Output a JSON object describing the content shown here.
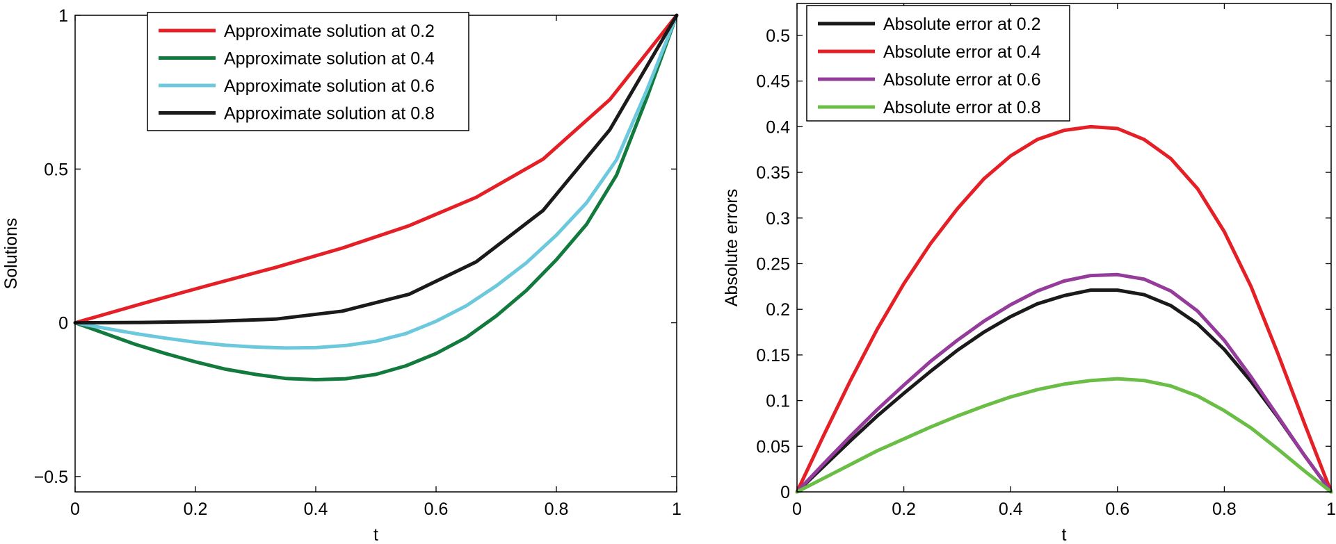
{
  "chart_data": [
    {
      "type": "line",
      "title": "",
      "xlabel": "t",
      "ylabel": "Solutions",
      "xlim": [
        0,
        1
      ],
      "ylim": [
        -0.55,
        1.0
      ],
      "xticks": [
        0,
        0.2,
        0.4,
        0.6,
        0.8,
        1
      ],
      "xtick_labels": [
        "0",
        "0.2",
        "0.4",
        "0.6",
        "0.8",
        "1"
      ],
      "yticks": [
        -0.5,
        0,
        0.5,
        1
      ],
      "ytick_labels": [
        "−0.5",
        "0",
        "0.5",
        "1"
      ],
      "legend_position": "top-center",
      "series": [
        {
          "name": "Approximate solution at 0.2",
          "color": "#e41f26",
          "x": [
            0,
            0.1111,
            0.2222,
            0.3333,
            0.4444,
            0.5556,
            0.6667,
            0.7778,
            0.8889,
            1
          ],
          "y": [
            0,
            0.062,
            0.122,
            0.18,
            0.243,
            0.316,
            0.408,
            0.532,
            0.726,
            1
          ]
        },
        {
          "name": "Approximate solution at 0.4",
          "color": "#127a3d",
          "x": [
            0,
            0.05,
            0.1,
            0.15,
            0.2,
            0.25,
            0.3,
            0.35,
            0.4,
            0.45,
            0.5,
            0.55,
            0.6,
            0.65,
            0.7,
            0.75,
            0.8,
            0.85,
            0.9,
            0.95,
            1
          ],
          "y": [
            0,
            -0.035,
            -0.07,
            -0.1,
            -0.127,
            -0.151,
            -0.168,
            -0.181,
            -0.185,
            -0.182,
            -0.168,
            -0.14,
            -0.1,
            -0.048,
            0.022,
            0.105,
            0.205,
            0.32,
            0.48,
            0.73,
            1
          ]
        },
        {
          "name": "Approximate solution at 0.6",
          "color": "#6cc8dc",
          "x": [
            0,
            0.05,
            0.1,
            0.15,
            0.2,
            0.25,
            0.3,
            0.35,
            0.4,
            0.45,
            0.5,
            0.55,
            0.6,
            0.65,
            0.7,
            0.75,
            0.8,
            0.85,
            0.9,
            0.95,
            1
          ],
          "y": [
            0,
            -0.018,
            -0.035,
            -0.05,
            -0.063,
            -0.073,
            -0.079,
            -0.082,
            -0.081,
            -0.074,
            -0.06,
            -0.035,
            0.005,
            0.055,
            0.12,
            0.195,
            0.285,
            0.39,
            0.53,
            0.755,
            1
          ]
        },
        {
          "name": "Approximate solution at 0.8",
          "color": "#1a1a1a",
          "x": [
            0,
            0.1111,
            0.2222,
            0.3333,
            0.4444,
            0.5556,
            0.6667,
            0.7778,
            0.8889,
            1
          ],
          "y": [
            0,
            0.001,
            0.004,
            0.012,
            0.038,
            0.093,
            0.198,
            0.365,
            0.628,
            1
          ]
        }
      ]
    },
    {
      "type": "line",
      "title": "",
      "xlabel": "t",
      "ylabel": "Absolute errors",
      "xlim": [
        0,
        1
      ],
      "ylim": [
        0,
        0.535
      ],
      "xticks": [
        0,
        0.2,
        0.4,
        0.6,
        0.8,
        1
      ],
      "xtick_labels": [
        "0",
        "0.2",
        "0.4",
        "0.6",
        "0.8",
        "1"
      ],
      "yticks": [
        0,
        0.05,
        0.1,
        0.15,
        0.2,
        0.25,
        0.3,
        0.35,
        0.4,
        0.45,
        0.5
      ],
      "ytick_labels": [
        "0",
        "0.05",
        "0.1",
        "0.15",
        "0.2",
        "0.25",
        "0.3",
        "0.35",
        "0.4",
        "0.45",
        "0.5"
      ],
      "legend_position": "top-left",
      "series": [
        {
          "name": "Absolute error at 0.2",
          "color": "#1a1a1a",
          "x": [
            0,
            0.05,
            0.1,
            0.15,
            0.2,
            0.25,
            0.3,
            0.35,
            0.4,
            0.45,
            0.5,
            0.55,
            0.6,
            0.65,
            0.7,
            0.75,
            0.8,
            0.85,
            0.9,
            0.95,
            1
          ],
          "y": [
            0,
            0.028,
            0.056,
            0.083,
            0.108,
            0.132,
            0.155,
            0.175,
            0.192,
            0.206,
            0.215,
            0.221,
            0.221,
            0.216,
            0.204,
            0.184,
            0.156,
            0.121,
            0.082,
            0.04,
            0
          ]
        },
        {
          "name": "Absolute error at 0.4",
          "color": "#e41f26",
          "x": [
            0,
            0.05,
            0.1,
            0.15,
            0.2,
            0.25,
            0.3,
            0.35,
            0.4,
            0.45,
            0.5,
            0.55,
            0.6,
            0.65,
            0.7,
            0.75,
            0.8,
            0.85,
            0.9,
            0.95,
            1
          ],
          "y": [
            0,
            0.062,
            0.122,
            0.178,
            0.228,
            0.272,
            0.31,
            0.343,
            0.368,
            0.386,
            0.396,
            0.4,
            0.398,
            0.386,
            0.365,
            0.332,
            0.285,
            0.225,
            0.152,
            0.075,
            0
          ]
        },
        {
          "name": "Absolute error at 0.6",
          "color": "#953b9b",
          "x": [
            0,
            0.05,
            0.1,
            0.15,
            0.2,
            0.25,
            0.3,
            0.35,
            0.4,
            0.45,
            0.5,
            0.55,
            0.6,
            0.65,
            0.7,
            0.75,
            0.8,
            0.85,
            0.9,
            0.95,
            1
          ],
          "y": [
            0,
            0.031,
            0.061,
            0.09,
            0.117,
            0.143,
            0.166,
            0.187,
            0.205,
            0.22,
            0.231,
            0.237,
            0.238,
            0.233,
            0.22,
            0.198,
            0.166,
            0.126,
            0.083,
            0.04,
            0
          ]
        },
        {
          "name": "Absolute error at 0.8",
          "color": "#6abd45",
          "x": [
            0,
            0.05,
            0.1,
            0.15,
            0.2,
            0.25,
            0.3,
            0.35,
            0.4,
            0.45,
            0.5,
            0.55,
            0.6,
            0.65,
            0.7,
            0.75,
            0.8,
            0.85,
            0.9,
            0.95,
            1
          ],
          "y": [
            0,
            0.015,
            0.03,
            0.045,
            0.058,
            0.071,
            0.083,
            0.094,
            0.104,
            0.112,
            0.118,
            0.122,
            0.124,
            0.122,
            0.116,
            0.105,
            0.089,
            0.07,
            0.047,
            0.023,
            0
          ]
        }
      ]
    }
  ]
}
